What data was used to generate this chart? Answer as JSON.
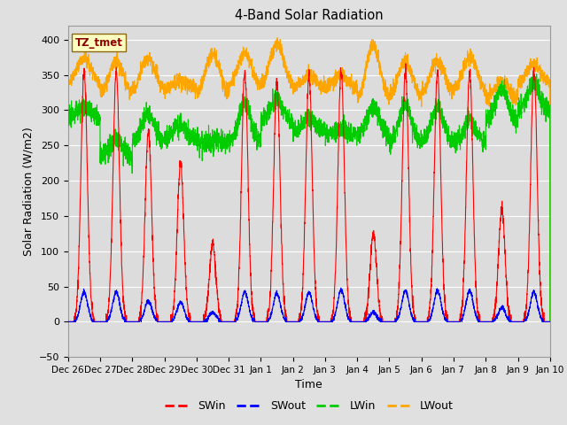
{
  "title": "4-Band Solar Radiation",
  "xlabel": "Time",
  "ylabel": "Solar Radiation (W/m2)",
  "ylim": [
    -50,
    420
  ],
  "yticks": [
    -50,
    0,
    50,
    100,
    150,
    200,
    250,
    300,
    350,
    400
  ],
  "annotation_text": "TZ_tmet",
  "annotation_color": "#8B0000",
  "annotation_bg": "#FFFFC0",
  "annotation_border": "#8B6914",
  "colors": {
    "SWin": "#FF0000",
    "SWout": "#0000FF",
    "LWin": "#00CC00",
    "LWout": "#FFA500"
  },
  "fig_bg": "#E0E0E0",
  "plot_bg": "#DCDCDC",
  "n_days": 15,
  "pts_per_day": 240,
  "xtick_labels": [
    "Dec 26",
    "Dec 27",
    "Dec 28",
    "Dec 29",
    "Dec 30",
    "Dec 31",
    "Jan 1",
    "Jan 2",
    "Jan 3",
    "Jan 4",
    "Jan 5",
    "Jan 6",
    "Jan 7",
    "Jan 8",
    "Jan 9",
    "Jan 10"
  ],
  "line_width": 0.8,
  "SWin_peaks": [
    355,
    355,
    270,
    225,
    110,
    355,
    340,
    350,
    355,
    125,
    355,
    355,
    355,
    160,
    355
  ],
  "SWout_peaks": [
    42,
    42,
    30,
    28,
    13,
    42,
    40,
    42,
    45,
    14,
    44,
    44,
    44,
    20,
    42
  ],
  "LWin_bases": [
    290,
    235,
    255,
    260,
    255,
    255,
    285,
    270,
    265,
    265,
    255,
    255,
    255,
    285,
    300
  ],
  "LWin_bumps": [
    15,
    25,
    40,
    20,
    0,
    55,
    30,
    20,
    10,
    40,
    55,
    50,
    30,
    45,
    40
  ],
  "LWout_bases": [
    335,
    320,
    325,
    330,
    320,
    330,
    330,
    330,
    330,
    310,
    315,
    320,
    325,
    315,
    335
  ],
  "LWout_bumps": [
    40,
    50,
    50,
    10,
    60,
    50,
    65,
    20,
    20,
    80,
    55,
    50,
    50,
    25,
    30
  ]
}
